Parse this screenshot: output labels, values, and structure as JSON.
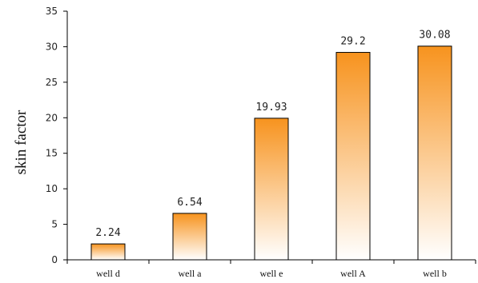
{
  "chart_data": {
    "type": "bar",
    "categories": [
      "well d",
      "well a",
      "well e",
      "well A",
      "well b"
    ],
    "values": [
      2.24,
      6.54,
      19.93,
      29.2,
      30.08
    ],
    "data_labels": [
      "2.24",
      "6.54",
      "19.93",
      "29.2",
      "30.08"
    ],
    "title": "",
    "xlabel": "",
    "ylabel": "skin factor",
    "ylim": [
      0,
      35
    ],
    "yticks": [
      0,
      5,
      10,
      15,
      20,
      25,
      30,
      35
    ],
    "grid": false,
    "legend": "none",
    "colors": {
      "bar_top": "#f7931e",
      "bar_bottom": "#ffffff",
      "bar_outline": "#000000",
      "axis": "#000000"
    }
  }
}
